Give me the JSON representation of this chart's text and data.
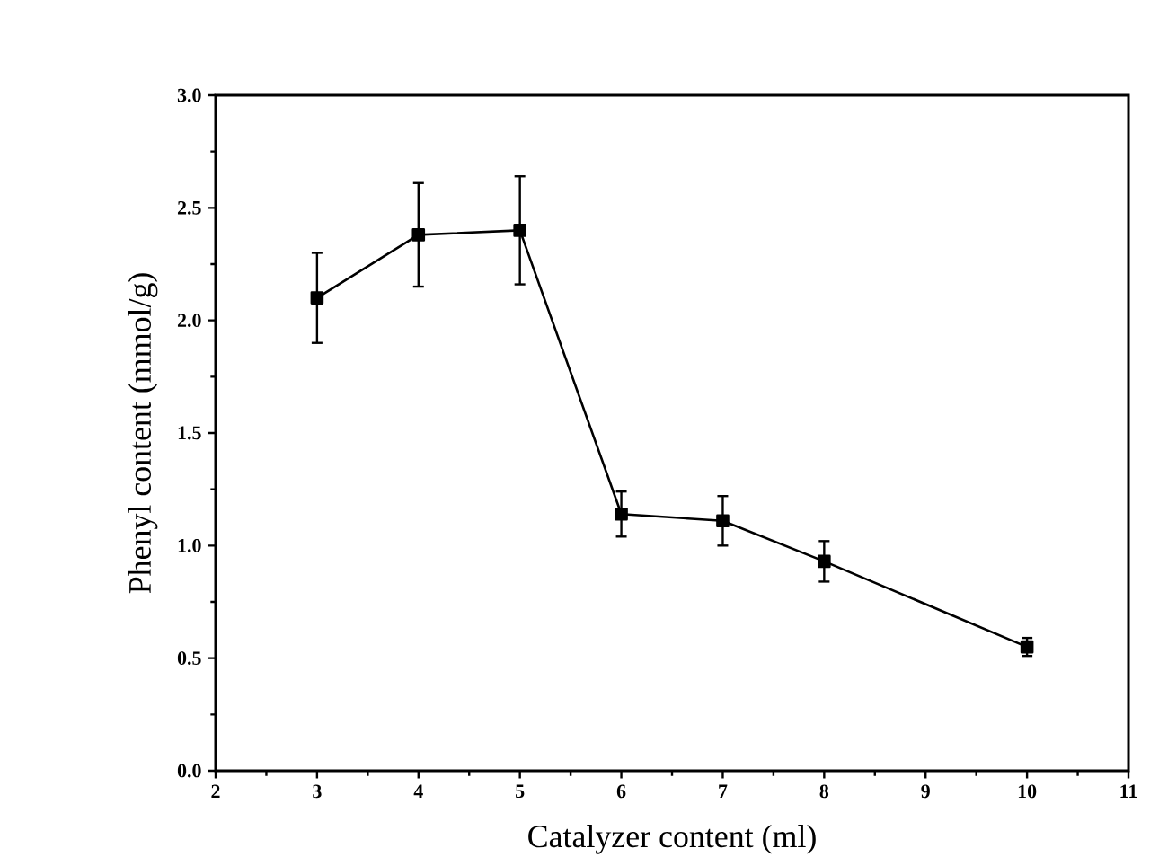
{
  "chart_data": {
    "type": "line",
    "xlabel": "Catalyzer content (ml)",
    "ylabel": "Phenyl content (mmol/g)",
    "x": [
      3,
      4,
      5,
      6,
      7,
      8,
      10
    ],
    "values": [
      2.1,
      2.38,
      2.4,
      1.14,
      1.11,
      0.93,
      0.55
    ],
    "errors": [
      0.2,
      0.23,
      0.24,
      0.1,
      0.11,
      0.09,
      0.04
    ],
    "color": "#000000",
    "marker": "square",
    "line_style": "solid",
    "xlim": [
      2,
      11
    ],
    "xticks": [
      2,
      3,
      4,
      5,
      6,
      7,
      8,
      9,
      10,
      11
    ],
    "ylim": [
      0,
      3
    ],
    "yticks": [
      {
        "value": 0,
        "label": "0.0"
      },
      0.5,
      {
        "value": 1,
        "label": "1.0"
      },
      1.5,
      {
        "value": 2,
        "label": "2.0"
      },
      2.5,
      {
        "value": 3,
        "label": "3.0"
      }
    ]
  }
}
